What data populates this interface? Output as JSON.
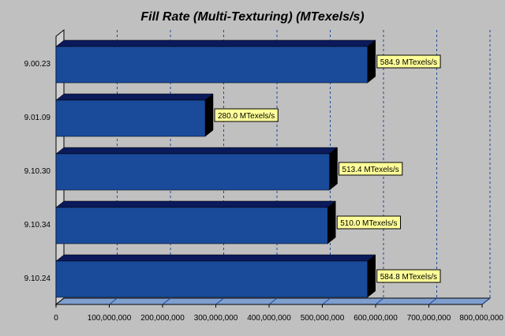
{
  "chart_data": {
    "type": "bar",
    "orientation": "horizontal",
    "title": "Fill Rate (Multi-Texturing) (MTexels/s)",
    "categories": [
      "9.00.23",
      "9.01.09",
      "9.10.30",
      "9.10.34",
      "9.10.24"
    ],
    "values": [
      584900000,
      280000000,
      513400000,
      510000000,
      584800000
    ],
    "data_labels": [
      "584.9 MTexels/s",
      "280.0 MTexels/s",
      "513.4 MTexels/s",
      "510.0 MTexels/s",
      "584.8 MTexels/s"
    ],
    "xlim": [
      0,
      800000000
    ],
    "x_ticks": [
      "0",
      "100,000,000",
      "200,000,000",
      "300,000,000",
      "400,000,000",
      "500,000,000",
      "600,000,000",
      "700,000,000",
      "800,000,000"
    ],
    "xlabel": "",
    "ylabel": "",
    "grid": true,
    "legend": "none",
    "colors": {
      "background": "#c0c0c0",
      "bar_front": "#1a4a9a",
      "bar_top": "#0a1a5a",
      "bar_side": "#000000",
      "grid": "#1a4a9a",
      "floor": "#7f9fcf",
      "data_label_bg": "#ffff99"
    }
  }
}
